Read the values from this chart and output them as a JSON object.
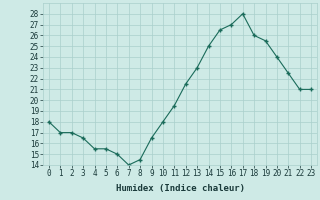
{
  "x": [
    0,
    1,
    2,
    3,
    4,
    5,
    6,
    7,
    8,
    9,
    10,
    11,
    12,
    13,
    14,
    15,
    16,
    17,
    18,
    19,
    20,
    21,
    22,
    23
  ],
  "y": [
    18.0,
    17.0,
    17.0,
    16.5,
    15.5,
    15.5,
    15.0,
    14.0,
    14.5,
    16.5,
    18.0,
    19.5,
    21.5,
    23.0,
    25.0,
    26.5,
    27.0,
    28.0,
    26.0,
    25.5,
    24.0,
    22.5,
    21.0,
    21.0
  ],
  "line_color": "#1a6b5a",
  "marker_color": "#1a6b5a",
  "bg_color": "#ceeae6",
  "grid_color": "#aacfcc",
  "xlabel": "Humidex (Indice chaleur)",
  "ylim": [
    14,
    29
  ],
  "xlim": [
    -0.5,
    23.5
  ],
  "yticks": [
    14,
    15,
    16,
    17,
    18,
    19,
    20,
    21,
    22,
    23,
    24,
    25,
    26,
    27,
    28
  ],
  "xticks": [
    0,
    1,
    2,
    3,
    4,
    5,
    6,
    7,
    8,
    9,
    10,
    11,
    12,
    13,
    14,
    15,
    16,
    17,
    18,
    19,
    20,
    21,
    22,
    23
  ],
  "tick_label_color": "#1a3a3a",
  "font_size_ticks": 5.5,
  "font_size_label": 6.5
}
